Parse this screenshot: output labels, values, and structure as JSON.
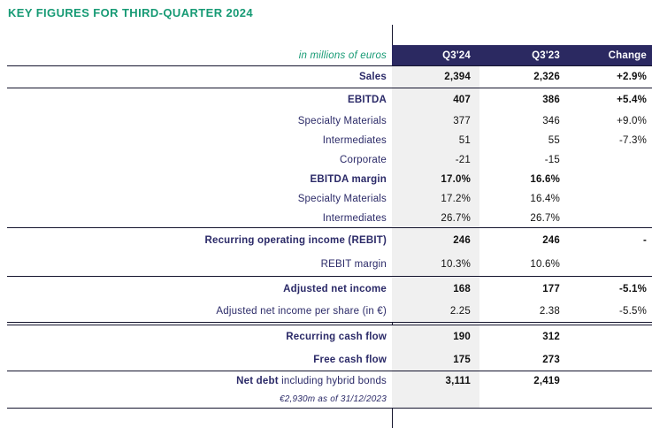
{
  "page_title": "KEY FIGURES FOR THIRD-QUARTER 2024",
  "colors": {
    "accent_green": "#169a74",
    "navy_text": "#2b2a68",
    "header_bg": "#2b2961",
    "highlight_column_bg": "#f0f0f0"
  },
  "table": {
    "unit_label": "in millions of euros",
    "columns": [
      "Q3'24",
      "Q3'23",
      "Change"
    ],
    "rows": [
      {
        "label": "Sales",
        "q324": "2,394",
        "q323": "2,326",
        "change": "+2.9%"
      },
      {
        "label": "EBITDA",
        "q324": "407",
        "q323": "386",
        "change": "+5.4%"
      },
      {
        "label": "Specialty Materials",
        "q324": "377",
        "q323": "346",
        "change": "+9.0%"
      },
      {
        "label": "Intermediates",
        "q324": "51",
        "q323": "55",
        "change": "-7.3%"
      },
      {
        "label": "Corporate",
        "q324": "-21",
        "q323": "-15",
        "change": ""
      },
      {
        "label": "EBITDA margin",
        "q324": "17.0%",
        "q323": "16.6%",
        "change": ""
      },
      {
        "label": "Specialty Materials",
        "q324": "17.2%",
        "q323": "16.4%",
        "change": ""
      },
      {
        "label": "Intermediates",
        "q324": "26.7%",
        "q323": "26.7%",
        "change": ""
      },
      {
        "label": "Recurring operating income (REBIT)",
        "q324": "246",
        "q323": "246",
        "change": "-"
      },
      {
        "label": "REBIT margin",
        "q324": "10.3%",
        "q323": "10.6%",
        "change": ""
      },
      {
        "label": "Adjusted net income",
        "q324": "168",
        "q323": "177",
        "change": "-5.1%"
      },
      {
        "label": "Adjusted net income per share (in €)",
        "q324": "2.25",
        "q323": "2.38",
        "change": "-5.5%"
      },
      {
        "label": "Recurring cash flow",
        "q324": "190",
        "q323": "312",
        "change": ""
      },
      {
        "label": "Free cash flow",
        "q324": "175",
        "q323": "273",
        "change": ""
      },
      {
        "label_bold": "Net debt",
        "label_tail": " including hybrid bonds",
        "q324": "3,111",
        "q323": "2,419",
        "change": ""
      },
      {
        "label": "€2,930m as of 31/12/2023",
        "q324": "",
        "q323": "",
        "change": ""
      }
    ]
  }
}
